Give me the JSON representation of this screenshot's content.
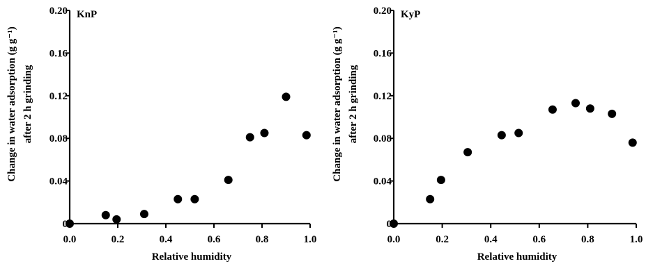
{
  "chart_data": [
    {
      "type": "scatter",
      "panel_label": "KnP",
      "xlabel": "Relative humidity",
      "ylabel_line1": "Change in water adsorption (g g⁻¹)",
      "ylabel_line2": "after 2 h grinding",
      "xlim": [
        0.0,
        1.0
      ],
      "ylim": [
        0,
        0.2
      ],
      "x_ticks": [
        "0.0",
        "0.2",
        "0.4",
        "0.6",
        "0.8",
        "1.0"
      ],
      "y_ticks": [
        "0",
        "0.04",
        "0.08",
        "0.12",
        "0.16",
        "0.20"
      ],
      "grid": false,
      "points": [
        {
          "x": 0.0,
          "y": 0.0
        },
        {
          "x": 0.15,
          "y": 0.008
        },
        {
          "x": 0.195,
          "y": 0.004
        },
        {
          "x": 0.31,
          "y": 0.009
        },
        {
          "x": 0.45,
          "y": 0.023
        },
        {
          "x": 0.52,
          "y": 0.023
        },
        {
          "x": 0.66,
          "y": 0.041
        },
        {
          "x": 0.75,
          "y": 0.081
        },
        {
          "x": 0.81,
          "y": 0.085
        },
        {
          "x": 0.9,
          "y": 0.119
        },
        {
          "x": 0.985,
          "y": 0.083
        }
      ]
    },
    {
      "type": "scatter",
      "panel_label": "KyP",
      "xlabel": "Relative humidity",
      "ylabel_line1": "Change in water adsorption (g g⁻¹)",
      "ylabel_line2": "after 2 h grinding",
      "xlim": [
        0.0,
        1.0
      ],
      "ylim": [
        0,
        0.2
      ],
      "x_ticks": [
        "0.0",
        "0.2",
        "0.4",
        "0.6",
        "0.8",
        "1.0"
      ],
      "y_ticks": [
        "0",
        "0.04",
        "0.08",
        "0.12",
        "0.16",
        "0.20"
      ],
      "grid": false,
      "points": [
        {
          "x": 0.0,
          "y": 0.0
        },
        {
          "x": 0.15,
          "y": 0.023
        },
        {
          "x": 0.195,
          "y": 0.041
        },
        {
          "x": 0.305,
          "y": 0.067
        },
        {
          "x": 0.445,
          "y": 0.083
        },
        {
          "x": 0.515,
          "y": 0.085
        },
        {
          "x": 0.655,
          "y": 0.107
        },
        {
          "x": 0.75,
          "y": 0.113
        },
        {
          "x": 0.81,
          "y": 0.108
        },
        {
          "x": 0.9,
          "y": 0.103
        },
        {
          "x": 0.985,
          "y": 0.076
        }
      ]
    }
  ]
}
